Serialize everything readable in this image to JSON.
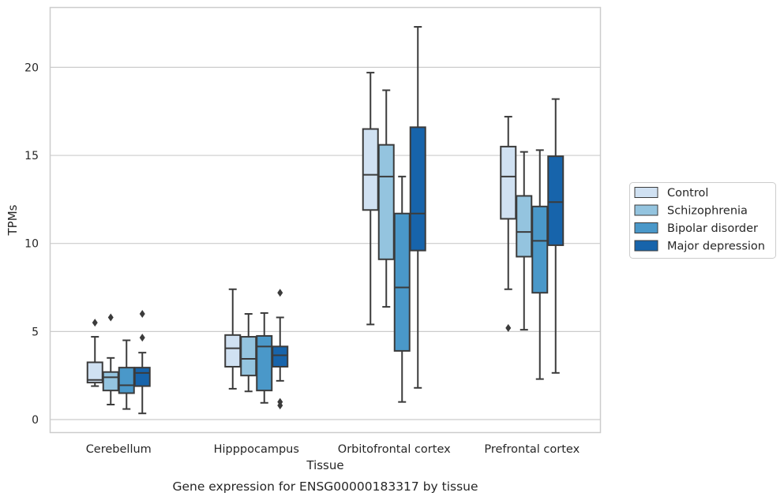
{
  "chart_data": {
    "type": "box",
    "title": "",
    "caption": "Gene expression for ENSG00000183317 by tissue",
    "xlabel": "Tissue",
    "ylabel": "TPMs",
    "ylim": [
      -0.6,
      23.3
    ],
    "yticks": [
      0,
      5,
      10,
      15,
      20
    ],
    "grid": "horizontal",
    "legend_position": "right-outside",
    "categories": [
      "Cerebellum",
      "Hipppocampus",
      "Orbitofrontal cortex",
      "Prefrontal cortex"
    ],
    "series": [
      {
        "name": "Control",
        "color": "#d0e1f2",
        "boxes": [
          {
            "whisker_low": 1.9,
            "q1": 2.1,
            "median": 2.25,
            "q3": 3.25,
            "whisker_high": 4.7,
            "outliers": [
              5.5
            ]
          },
          {
            "whisker_low": 1.75,
            "q1": 3.0,
            "median": 4.05,
            "q3": 4.8,
            "whisker_high": 7.4,
            "outliers": []
          },
          {
            "whisker_low": 5.4,
            "q1": 11.9,
            "median": 13.9,
            "q3": 16.5,
            "whisker_high": 19.7,
            "outliers": []
          },
          {
            "whisker_low": 7.4,
            "q1": 11.4,
            "median": 13.8,
            "q3": 15.5,
            "whisker_high": 17.2,
            "outliers": [
              5.2
            ]
          }
        ]
      },
      {
        "name": "Schizophrenia",
        "color": "#94c4df",
        "boxes": [
          {
            "whisker_low": 0.85,
            "q1": 1.65,
            "median": 2.4,
            "q3": 2.7,
            "whisker_high": 3.5,
            "outliers": [
              5.8
            ]
          },
          {
            "whisker_low": 1.6,
            "q1": 2.5,
            "median": 3.45,
            "q3": 4.7,
            "whisker_high": 6.0,
            "outliers": []
          },
          {
            "whisker_low": 6.4,
            "q1": 9.1,
            "median": 13.8,
            "q3": 15.6,
            "whisker_high": 18.7,
            "outliers": []
          },
          {
            "whisker_low": 5.1,
            "q1": 9.25,
            "median": 10.65,
            "q3": 12.7,
            "whisker_high": 15.2,
            "outliers": []
          }
        ]
      },
      {
        "name": "Bipolar disorder",
        "color": "#4a98c9",
        "boxes": [
          {
            "whisker_low": 0.6,
            "q1": 1.5,
            "median": 1.95,
            "q3": 2.95,
            "whisker_high": 4.5,
            "outliers": []
          },
          {
            "whisker_low": 0.95,
            "q1": 1.65,
            "median": 4.15,
            "q3": 4.75,
            "whisker_high": 6.05,
            "outliers": []
          },
          {
            "whisker_low": 1.0,
            "q1": 3.9,
            "median": 7.5,
            "q3": 11.7,
            "whisker_high": 13.8,
            "outliers": []
          },
          {
            "whisker_low": 2.3,
            "q1": 7.2,
            "median": 10.15,
            "q3": 12.1,
            "whisker_high": 15.3,
            "outliers": []
          }
        ]
      },
      {
        "name": "Major depression",
        "color": "#1764ab",
        "boxes": [
          {
            "whisker_low": 0.35,
            "q1": 1.9,
            "median": 2.65,
            "q3": 2.95,
            "whisker_high": 3.8,
            "outliers": [
              6.0,
              4.65
            ]
          },
          {
            "whisker_low": 2.2,
            "q1": 3.0,
            "median": 3.65,
            "q3": 4.15,
            "whisker_high": 5.8,
            "outliers": [
              7.2,
              1.0,
              0.8
            ]
          },
          {
            "whisker_low": 1.8,
            "q1": 9.6,
            "median": 11.7,
            "q3": 16.6,
            "whisker_high": 22.3,
            "outliers": []
          },
          {
            "whisker_low": 2.65,
            "q1": 9.9,
            "median": 12.35,
            "q3": 14.95,
            "whisker_high": 18.2,
            "outliers": []
          }
        ]
      }
    ]
  }
}
